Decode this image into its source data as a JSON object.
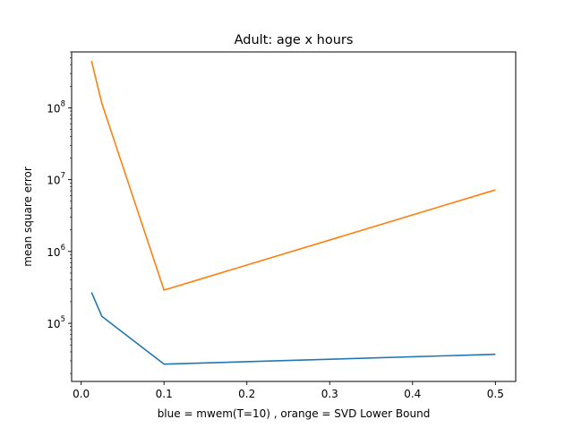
{
  "chart_data": {
    "type": "line",
    "title": "Adult: age x hours",
    "xlabel": "blue = mwem(T=10) , orange = SVD Lower Bound",
    "ylabel": "mean square error",
    "xscale": "linear",
    "yscale": "log",
    "xlim": [
      -0.0115,
      0.5245
    ],
    "ylim": [
      15500,
      600000000
    ],
    "grid": false,
    "x_ticks": [
      {
        "value": 0.0,
        "label": "0.0"
      },
      {
        "value": 0.1,
        "label": "0.1"
      },
      {
        "value": 0.2,
        "label": "0.2"
      },
      {
        "value": 0.3,
        "label": "0.3"
      },
      {
        "value": 0.4,
        "label": "0.4"
      },
      {
        "value": 0.5,
        "label": "0.5"
      }
    ],
    "y_ticks": [
      {
        "value": 100000,
        "base": "10",
        "exp": "5"
      },
      {
        "value": 1000000,
        "base": "10",
        "exp": "6"
      },
      {
        "value": 10000000,
        "base": "10",
        "exp": "7"
      },
      {
        "value": 100000000,
        "base": "10",
        "exp": "8"
      }
    ],
    "series": [
      {
        "color": "#1f77b4",
        "x": [
          0.0125,
          0.025,
          0.1,
          0.5
        ],
        "y": [
          270000,
          125000,
          27000,
          37000
        ]
      },
      {
        "color": "#ff7f0e",
        "x": [
          0.0125,
          0.025,
          0.1,
          0.5
        ],
        "y": [
          450000000,
          115000000,
          290000,
          7200000
        ]
      }
    ]
  }
}
